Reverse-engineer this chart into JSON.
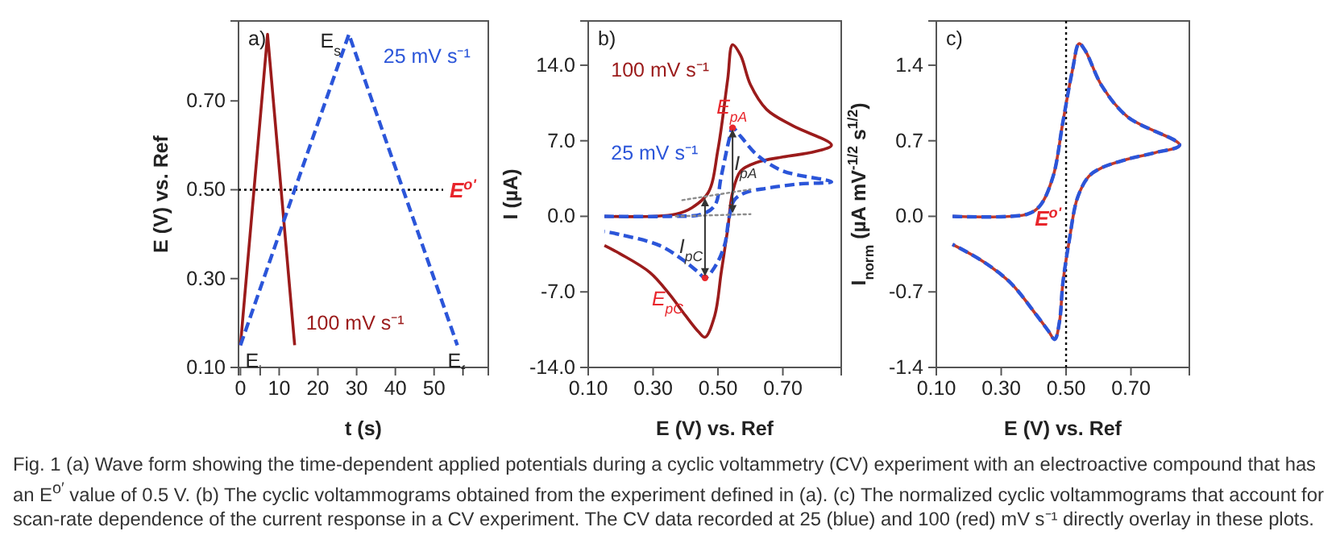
{
  "chart_data": [
    {
      "type": "line",
      "title": "a)",
      "xlabel": "t (s)",
      "ylabel": "E (V) vs. Ref",
      "xlim": [
        -0.5,
        64
      ],
      "xticks": [
        0,
        10,
        20,
        30,
        40,
        50
      ],
      "ylim": [
        0.1,
        0.88
      ],
      "yticks": [
        {
          "value": 0.1,
          "label": "0.10"
        },
        {
          "value": 0.3,
          "label": "0.30"
        },
        {
          "value": 0.5,
          "label": "0.50"
        },
        {
          "value": 0.7,
          "label": "0.70"
        }
      ],
      "series": [
        {
          "name": "100 mV s⁻¹",
          "color": "#9b1b1b",
          "x": [
            0,
            7,
            14
          ],
          "values": [
            0.15,
            0.85,
            0.15
          ]
        },
        {
          "name": "25 mV s⁻¹",
          "color": "#2b55d9",
          "line_style": "dashed",
          "x": [
            0,
            28,
            56
          ],
          "values": [
            0.15,
            0.85,
            0.15
          ]
        }
      ],
      "ref_lines": [
        {
          "axis": "y",
          "value": 0.5,
          "label": "E$^{o'}$",
          "color": "#000000",
          "line_style": "dotted"
        }
      ],
      "annotations": [
        {
          "text": "E$_{i}$",
          "x": 0,
          "y": 0.15
        },
        {
          "text": "E$_{s}$",
          "x": 28,
          "y": 0.85
        },
        {
          "text": "E$_{f}$",
          "x": 56,
          "y": 0.15
        },
        "Fig. 1  (a) Wave form showing the time-dependent applied potentials during a cyclic voltammetry (CV) experiment with an electroactive compound that has an E$^{o′}$ value of 0.5 V. (b) The cyclic voltammograms obtained from the experiment defined in (a). (c) The normalized cyclic voltammograms that account for scan-rate dependence of the current response in a CV experiment. The CV data recorded at 25 (blue) and 100 (red) mV s⁻¹ directly overlay in these plots."
      ]
    },
    {
      "type": "line",
      "title": "b)",
      "xlabel": "E (V) vs. Ref",
      "ylabel": "I (µA)",
      "xlim": [
        0.1,
        0.88
      ],
      "xticks": [
        {
          "value": 0.1,
          "label": "0.10"
        },
        {
          "value": 0.3,
          "label": "0.30"
        },
        {
          "value": 0.5,
          "label": "0.50"
        },
        {
          "value": 0.7,
          "label": "0.70"
        }
      ],
      "ylim": [
        -14,
        18.1
      ],
      "yticks": [
        {
          "value": -14,
          "label": "-14.0"
        },
        {
          "value": -7,
          "label": "-7.0"
        },
        {
          "value": 0,
          "label": "0.0"
        },
        {
          "value": 7,
          "label": "7.0"
        },
        {
          "value": 14,
          "label": "14.0"
        }
      ],
      "series": [
        {
          "name": "100 mV s⁻¹",
          "color": "#9b1b1b",
          "x": [
            0.15,
            0.3,
            0.37,
            0.42,
            0.47,
            0.5,
            0.53,
            0.545,
            0.57,
            0.6,
            0.65,
            0.73,
            0.85,
            0.8,
            0.7,
            0.62,
            0.57,
            0.545,
            0.53,
            0.51,
            0.49,
            0.46,
            0.44,
            0.4,
            0.35,
            0.29,
            0.2,
            0.15
          ],
          "values": [
            0,
            0,
            0.2,
            0.8,
            2.2,
            6.2,
            12.7,
            15.9,
            14.9,
            12.2,
            9.9,
            8.4,
            6.6,
            6.0,
            5.5,
            5.0,
            4.2,
            2.2,
            -1.2,
            -5.2,
            -9.2,
            -11.2,
            -10.7,
            -9.2,
            -7.2,
            -5.2,
            -3.5,
            -2.7
          ]
        },
        {
          "name": "25 mV s⁻¹",
          "color": "#2b55d9",
          "line_style": "dashed",
          "x": [
            0.15,
            0.35,
            0.45,
            0.49,
            0.51,
            0.535,
            0.545,
            0.57,
            0.62,
            0.7,
            0.85,
            0.75,
            0.65,
            0.585,
            0.55,
            0.535,
            0.52,
            0.49,
            0.46,
            0.44,
            0.39,
            0.32,
            0.2,
            0.15
          ],
          "values": [
            0,
            0,
            0.2,
            1.0,
            3.7,
            7.2,
            8.2,
            7.4,
            5.7,
            4.2,
            3.2,
            3.0,
            2.6,
            2.2,
            1.5,
            0,
            -2.7,
            -4.7,
            -5.7,
            -5.2,
            -4.0,
            -2.7,
            -1.7,
            -1.4
          ]
        },
        {
          "type": "line",
          "color": "#8c8c8c",
          "line_style": "dotted",
          "x": [
            0.37,
            0.6
          ],
          "values": [
            0,
            0.2
          ]
        },
        {
          "type": "line",
          "color": "#8c8c8c",
          "line_style": "dotted",
          "x": [
            0.39,
            0.6
          ],
          "values": [
            1.5,
            2.5
          ]
        },
        {
          "type": "scatter",
          "color": "#e8262c",
          "marker": "circle",
          "x": [
            0.545,
            0.46
          ],
          "values": [
            8.2,
            -5.7
          ]
        }
      ],
      "annotations": [
        {
          "text": "E$_{pA}$",
          "x": 0.545,
          "y": 8.2
        },
        {
          "text": "I$_{pA}$",
          "x": 0.55,
          "y": 4.3
        },
        {
          "text": "E$_{pC}$",
          "x": 0.46,
          "y": -5.7
        },
        {
          "text": "I$_{pC}$",
          "x": 0.38,
          "y": -3.4
        }
      ]
    },
    {
      "type": "line",
      "title": "c)",
      "xlabel": "E (V) vs. Ref",
      "ylabel": "I$_{norm}$ (µA mV$^{-1/2}$ s$^{1/2}$)",
      "xlim": [
        0.1,
        0.88
      ],
      "xticks": [
        {
          "value": 0.1,
          "label": "0.10"
        },
        {
          "value": 0.3,
          "label": "0.30"
        },
        {
          "value": 0.5,
          "label": "0.50"
        },
        {
          "value": 0.7,
          "label": "0.70"
        }
      ],
      "ylim": [
        -1.4,
        1.81
      ],
      "yticks": [
        {
          "value": -1.4,
          "label": "-1.4"
        },
        {
          "value": -0.7,
          "label": "-0.7"
        },
        {
          "value": 0,
          "label": "0.0"
        },
        {
          "value": 0.7,
          "label": "0.7"
        },
        {
          "value": 1.4,
          "label": "1.4"
        }
      ],
      "series": [
        {
          "color": "#c0392b",
          "x": [
            0.15,
            0.38,
            0.42,
            0.46,
            0.49,
            0.52,
            0.54,
            0.56,
            0.61,
            0.69,
            0.85,
            0.775,
            0.69,
            0.61,
            0.57,
            0.535,
            0.51,
            0.49,
            0.48,
            0.465,
            0.445,
            0.41,
            0.33,
            0.245,
            0.15
          ],
          "values": [
            0,
            0.02,
            0.1,
            0.37,
            0.87,
            1.36,
            1.6,
            1.53,
            1.21,
            0.92,
            0.66,
            0.59,
            0.53,
            0.45,
            0.37,
            0.17,
            -0.22,
            -0.62,
            -0.97,
            -1.14,
            -1.06,
            -0.92,
            -0.62,
            -0.42,
            -0.26
          ]
        },
        {
          "color": "#2b55d9",
          "line_style": "dashed",
          "x": [
            0.15,
            0.38,
            0.42,
            0.46,
            0.49,
            0.52,
            0.54,
            0.56,
            0.61,
            0.69,
            0.85,
            0.775,
            0.69,
            0.61,
            0.57,
            0.535,
            0.51,
            0.49,
            0.48,
            0.465,
            0.445,
            0.41,
            0.33,
            0.245,
            0.15
          ],
          "values": [
            0,
            0.02,
            0.1,
            0.37,
            0.87,
            1.36,
            1.6,
            1.53,
            1.21,
            0.92,
            0.66,
            0.59,
            0.53,
            0.45,
            0.37,
            0.17,
            -0.22,
            -0.62,
            -0.97,
            -1.14,
            -1.06,
            -0.92,
            -0.62,
            -0.42,
            -0.26
          ]
        }
      ],
      "ref_lines": [
        {
          "axis": "x",
          "value": 0.5,
          "label": "E$^{o'}$",
          "color": "#000000",
          "line_style": "dotted"
        }
      ]
    }
  ]
}
